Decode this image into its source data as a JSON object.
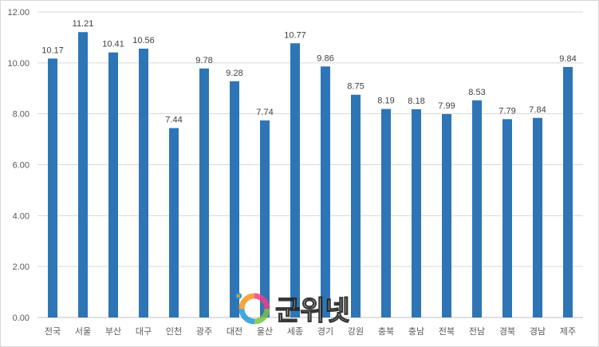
{
  "chart_data": {
    "type": "bar",
    "categories": [
      "전국",
      "서울",
      "부산",
      "대구",
      "인천",
      "광주",
      "대전",
      "울산",
      "세종",
      "경기",
      "강원",
      "충북",
      "충남",
      "전북",
      "전남",
      "경북",
      "경남",
      "제주"
    ],
    "values": [
      10.17,
      11.21,
      10.41,
      10.56,
      7.44,
      9.78,
      9.28,
      7.74,
      10.77,
      9.86,
      8.75,
      8.19,
      8.18,
      7.99,
      8.53,
      7.79,
      7.84,
      9.84
    ],
    "data_labels": [
      "10.17",
      "11.21",
      "10.41",
      "10.56",
      "7.44",
      "9.78",
      "9.28",
      "7.74",
      "10.77",
      "9.86",
      "8.75",
      "8.19",
      "8.18",
      "7.99",
      "8.53",
      "7.79",
      "7.84",
      "9.84"
    ],
    "y_ticks": [
      "0.00",
      "2.00",
      "4.00",
      "6.00",
      "8.00",
      "10.00",
      "12.00"
    ],
    "ylim": [
      0,
      12
    ],
    "grid": true,
    "bar_color": "#2e75b6",
    "legend": "none"
  },
  "watermark": {
    "text": "군위넷",
    "icon": "colorful-swirl-logo"
  }
}
